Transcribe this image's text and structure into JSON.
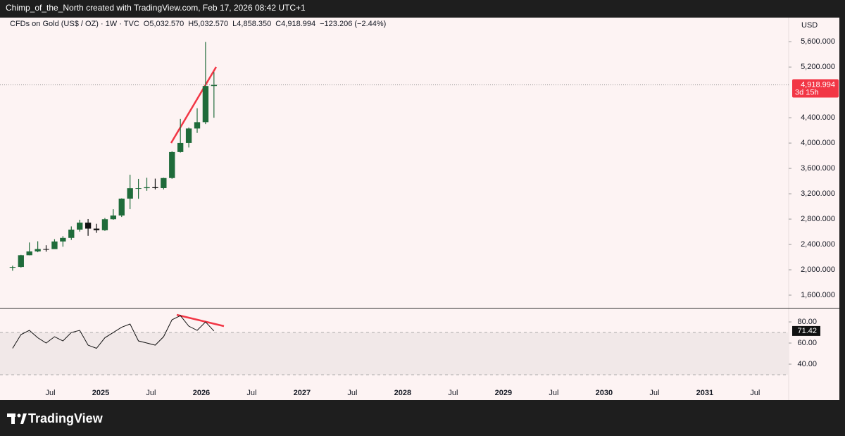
{
  "header": {
    "title": "Chimp_of_the_North created with TradingView.com, Feb 17, 2026 08:42 UTC+1"
  },
  "footer": {
    "brand": "TradingView"
  },
  "chart_data": [
    {
      "type": "candlestick",
      "title": "CFDs on Gold (US$ / OZ) · 1W · TVC",
      "ohlc_text": [
        "O5,032.570",
        "H5,032.570",
        "L4,858.350",
        "C4,918.994",
        "−123.206 (−2.44%)"
      ],
      "currency": "USD",
      "x": [
        "2024-02",
        "2024-03",
        "2024-04",
        "2024-05",
        "2024-06",
        "2024-07",
        "2024-08",
        "2024-09",
        "2024-10",
        "2024-11",
        "2024-12",
        "2025-01",
        "2025-02",
        "2025-03",
        "2025-04",
        "2025-05",
        "2025-06",
        "2025-07",
        "2025-08",
        "2025-09",
        "2025-10",
        "2025-11",
        "2025-12",
        "2026-01",
        "2026-02"
      ],
      "open": [
        2040,
        2044,
        2230,
        2290,
        2327,
        2326,
        2447,
        2503,
        2634,
        2744,
        2650,
        2624,
        2798,
        2857,
        3123,
        3288,
        3289,
        3303,
        3290,
        3448,
        3858,
        4002,
        4230,
        4330,
        4900
      ],
      "high": [
        2065,
        2236,
        2431,
        2450,
        2387,
        2483,
        2531,
        2685,
        2790,
        2801,
        2726,
        2817,
        2956,
        3128,
        3500,
        3435,
        3452,
        3439,
        3453,
        3870,
        4381,
        4245,
        4550,
        5595,
        5120
      ],
      "low": [
        1985,
        2035,
        2228,
        2277,
        2286,
        2353,
        2364,
        2471,
        2603,
        2536,
        2583,
        2614,
        2790,
        2833,
        2957,
        3121,
        3247,
        3268,
        3268,
        3436,
        3850,
        3930,
        4160,
        4300,
        4400
      ],
      "close": [
        2044,
        2230,
        2290,
        2327,
        2326,
        2447,
        2503,
        2634,
        2744,
        2650,
        2624,
        2798,
        2857,
        3123,
        3288,
        3289,
        3303,
        3290,
        3448,
        3858,
        4002,
        4230,
        4330,
        4900,
        4919
      ],
      "up_color": "#1f6b3a",
      "down_color": "#111111",
      "xlim": [
        "2024-01",
        "2031-11"
      ],
      "ylim": [
        1400,
        5980
      ],
      "yticks": [
        {
          "value": 1600,
          "label": "1,600.000"
        },
        {
          "value": 2000,
          "label": "2,000.000"
        },
        {
          "value": 2400,
          "label": "2,400.000"
        },
        {
          "value": 2800,
          "label": "2,800.000"
        },
        {
          "value": 3200,
          "label": "3,200.000"
        },
        {
          "value": 3600,
          "label": "3,600.000"
        },
        {
          "value": 4000,
          "label": "4,000.000"
        },
        {
          "value": 4400,
          "label": "4,400.000"
        },
        {
          "value": 5200,
          "label": "5,200.000"
        },
        {
          "value": 5600,
          "label": "5,600.000"
        }
      ],
      "last_price": {
        "value": 4918.994,
        "label": "4,918.994"
      },
      "countdown": "3d 15h"
    },
    {
      "type": "line",
      "x": [
        "2024-02",
        "2024-03",
        "2024-04",
        "2024-05",
        "2024-06",
        "2024-07",
        "2024-08",
        "2024-09",
        "2024-10",
        "2024-11",
        "2024-12",
        "2025-01",
        "2025-02",
        "2025-03",
        "2025-04",
        "2025-05",
        "2025-06",
        "2025-07",
        "2025-08",
        "2025-09",
        "2025-10",
        "2025-11",
        "2025-12",
        "2026-01",
        "2026-02"
      ],
      "values": [
        55,
        68,
        72,
        65,
        60,
        66,
        62,
        70,
        72,
        58,
        55,
        65,
        70,
        75,
        78,
        62,
        60,
        58,
        66,
        82,
        86,
        76,
        72,
        80,
        71.42
      ],
      "color": "#111111",
      "band": [
        30,
        70
      ],
      "xlim": [
        "2024-01",
        "2031-11"
      ],
      "ylim": [
        30,
        92.7
      ],
      "yticks": [
        {
          "value": 40,
          "label": "40.00"
        },
        {
          "value": 60,
          "label": "60.00"
        },
        {
          "value": 80,
          "label": "80.00"
        }
      ],
      "last_value": 71.42,
      "xticks": [
        {
          "value": "2024-07",
          "label": "Jul"
        },
        {
          "value": "2025-01",
          "label": "2025"
        },
        {
          "value": "2025-07",
          "label": "Jul"
        },
        {
          "value": "2026-01",
          "label": "2026"
        },
        {
          "value": "2026-07",
          "label": "Jul"
        },
        {
          "value": "2027-01",
          "label": "2027"
        },
        {
          "value": "2027-07",
          "label": "Jul"
        },
        {
          "value": "2028-01",
          "label": "2028"
        },
        {
          "value": "2028-07",
          "label": "Jul"
        },
        {
          "value": "2029-01",
          "label": "2029"
        },
        {
          "value": "2029-07",
          "label": "Jul"
        },
        {
          "value": "2030-01",
          "label": "2030"
        },
        {
          "value": "2030-07",
          "label": "Jul"
        },
        {
          "value": "2031-01",
          "label": "2031"
        },
        {
          "value": "2031-07",
          "label": "Jul"
        }
      ]
    }
  ]
}
